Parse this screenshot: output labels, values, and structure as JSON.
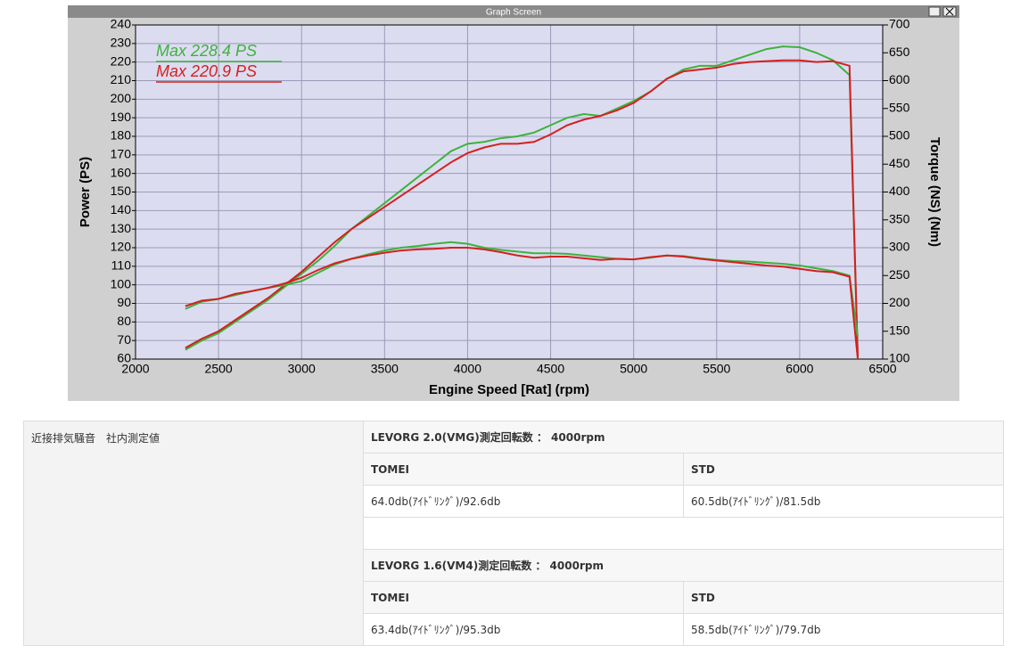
{
  "window_title": "Graph Screen",
  "chart_data": {
    "type": "line",
    "x": [
      2300,
      2400,
      2500,
      2600,
      2700,
      2800,
      2900,
      3000,
      3100,
      3200,
      3300,
      3400,
      3500,
      3600,
      3700,
      3800,
      3900,
      4000,
      4100,
      4200,
      4300,
      4400,
      4500,
      4600,
      4700,
      4800,
      4900,
      5000,
      5100,
      5200,
      5300,
      5400,
      5500,
      5600,
      5700,
      5800,
      5900,
      6000,
      6100,
      6200,
      6300,
      6350
    ],
    "series": [
      {
        "name": "Max 228.4 PS",
        "color": "#3cb33c",
        "axis": "y",
        "values": [
          65,
          70,
          74,
          80,
          86,
          92,
          99,
          106,
          113,
          121,
          130,
          137,
          144,
          151,
          158,
          165,
          172,
          176,
          177,
          179,
          180,
          182,
          186,
          190,
          192,
          191,
          195,
          199,
          204,
          211,
          216,
          218,
          218,
          221,
          224,
          227,
          228.4,
          228,
          225,
          221,
          213,
          60
        ]
      },
      {
        "name": "Max 220.9 PS",
        "color": "#d42020",
        "axis": "y",
        "values": [
          66,
          71,
          75,
          81,
          87,
          93,
          100,
          107,
          115,
          123,
          130,
          136,
          142,
          148,
          154,
          160,
          166,
          171,
          174,
          176,
          176,
          177,
          181,
          186,
          189,
          191,
          194,
          198,
          204,
          211,
          215,
          216,
          217,
          219,
          220,
          220.5,
          220.9,
          220.9,
          220,
          220.5,
          218,
          60
        ]
      },
      {
        "color": "#3cb33c",
        "axis": "y2",
        "values": [
          190,
          203,
          208,
          215,
          222,
          228,
          233,
          240,
          255,
          270,
          280,
          288,
          295,
          300,
          303,
          307,
          310,
          307,
          300,
          296,
          293,
          290,
          290,
          289,
          286,
          283,
          280,
          279,
          282,
          286,
          285,
          281,
          278,
          276,
          275,
          273,
          271,
          268,
          263,
          258,
          250,
          140
        ]
      },
      {
        "color": "#d42020",
        "axis": "y2",
        "values": [
          195,
          205,
          208,
          217,
          222,
          228,
          236,
          246,
          260,
          272,
          280,
          286,
          291,
          295,
          297,
          298,
          300,
          300,
          297,
          292,
          286,
          282,
          284,
          284,
          281,
          278,
          280,
          279,
          283,
          286,
          284,
          280,
          277,
          274,
          271,
          268,
          266,
          262,
          258,
          256,
          248,
          100
        ]
      }
    ],
    "xlabel": "Engine Speed [Rat] (rpm)",
    "ylabel": "Power (PS)",
    "y2label": "Torque (NS) (Nm)",
    "xlim": [
      2000,
      6500
    ],
    "xticks": [
      2000,
      2500,
      3000,
      3500,
      4000,
      4500,
      5000,
      5500,
      6000,
      6500
    ],
    "ylim": [
      60,
      240
    ],
    "yticks": [
      60,
      70,
      80,
      90,
      100,
      110,
      120,
      130,
      140,
      150,
      160,
      170,
      180,
      190,
      200,
      210,
      220,
      230,
      240
    ],
    "y2lim": [
      100,
      700
    ],
    "y2ticks": [
      100,
      150,
      200,
      250,
      300,
      350,
      400,
      450,
      500,
      550,
      600,
      650,
      700
    ],
    "grid": true
  },
  "table": {
    "label": "近接排気騒音　社内測定値",
    "sections": [
      {
        "title": "LEVORG 2.0(VMG)測定回転数 ： 4000rpm",
        "headers": [
          "TOMEI",
          "STD"
        ],
        "values": [
          "64.0db(ｱｲﾄﾞﾘﾝｸﾞ)/92.6db",
          "60.5db(ｱｲﾄﾞﾘﾝｸﾞ)/81.5db"
        ]
      },
      {
        "title": "LEVORG 1.6(VM4)測定回転数 ： 4000rpm",
        "headers": [
          "TOMEI",
          "STD"
        ],
        "values": [
          "63.4db(ｱｲﾄﾞﾘﾝｸﾞ)/95.3db",
          "58.5db(ｱｲﾄﾞﾘﾝｸﾞ)/79.7db"
        ]
      }
    ]
  }
}
